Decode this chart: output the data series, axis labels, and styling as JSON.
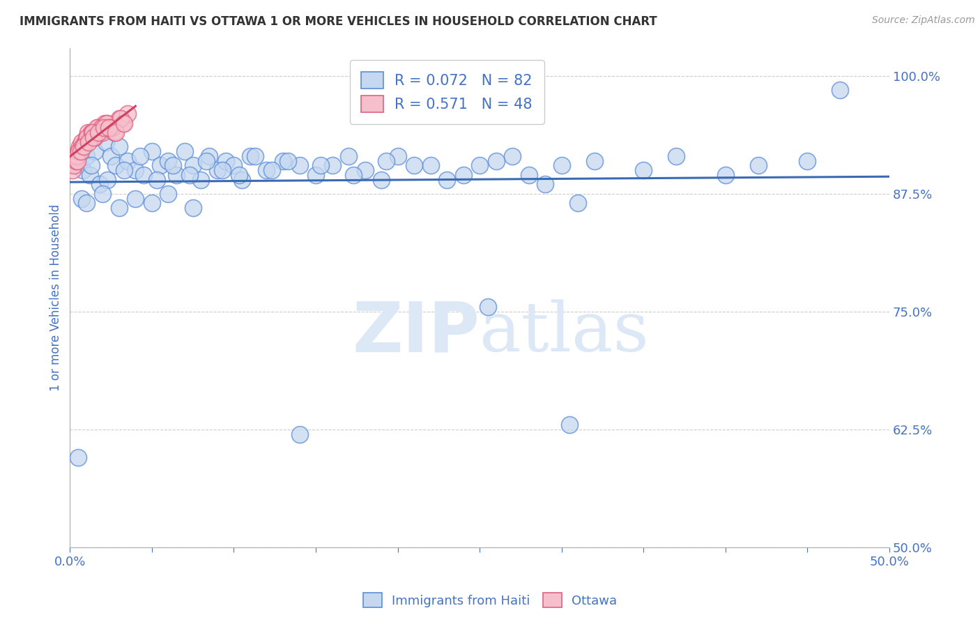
{
  "title": "IMMIGRANTS FROM HAITI VS OTTAWA 1 OR MORE VEHICLES IN HOUSEHOLD CORRELATION CHART",
  "source": "Source: ZipAtlas.com",
  "ylabel_label": "1 or more Vehicles in Household",
  "legend_label1": "Immigrants from Haiti",
  "legend_label2": "Ottawa",
  "r1": 0.072,
  "n1": 82,
  "r2": 0.571,
  "n2": 48,
  "blue_fill": "#c5d8f0",
  "blue_edge": "#5b8dd9",
  "pink_fill": "#f5c0cc",
  "pink_edge": "#e06080",
  "blue_line": "#3b6ab5",
  "pink_line": "#d04060",
  "text_color": "#4472c4",
  "watermark_color": "#dce8f5",
  "title_color": "#333333",
  "grid_color": "#cccccc",
  "xlim": [
    0,
    50
  ],
  "ylim": [
    50,
    103
  ],
  "yticks": [
    50,
    62.5,
    75,
    87.5,
    100
  ],
  "ytick_labels": [
    "50.0%",
    "62.5%",
    "75.0%",
    "87.5%",
    "100.0%"
  ],
  "xtick_labels_show": [
    "0.0%",
    "50.0%"
  ],
  "blue_x": [
    0.4,
    0.6,
    0.8,
    1.0,
    1.2,
    1.5,
    1.8,
    2.2,
    2.5,
    2.8,
    3.0,
    3.5,
    4.0,
    4.5,
    5.0,
    5.5,
    6.0,
    6.5,
    7.0,
    7.5,
    8.0,
    8.5,
    9.0,
    9.5,
    10.0,
    10.5,
    11.0,
    12.0,
    13.0,
    14.0,
    15.0,
    16.0,
    17.0,
    18.0,
    19.0,
    20.0,
    22.0,
    24.0,
    25.0,
    26.0,
    27.0,
    28.0,
    30.0,
    32.0,
    35.0,
    37.0,
    40.0,
    42.0,
    45.0,
    47.0,
    1.3,
    2.3,
    3.3,
    4.3,
    5.3,
    6.3,
    7.3,
    8.3,
    9.3,
    10.3,
    11.3,
    12.3,
    13.3,
    15.3,
    17.3,
    19.3,
    21.0,
    23.0,
    25.5,
    29.0,
    31.0,
    0.5,
    14.0,
    30.5,
    0.7,
    1.0,
    2.0,
    3.0,
    4.0,
    5.0,
    6.0,
    7.5
  ],
  "blue_y": [
    90.5,
    91.0,
    90.0,
    91.5,
    89.5,
    92.0,
    88.5,
    93.0,
    91.5,
    90.5,
    92.5,
    91.0,
    90.0,
    89.5,
    92.0,
    90.5,
    91.0,
    89.5,
    92.0,
    90.5,
    89.0,
    91.5,
    90.0,
    91.0,
    90.5,
    89.0,
    91.5,
    90.0,
    91.0,
    90.5,
    89.5,
    90.5,
    91.5,
    90.0,
    89.0,
    91.5,
    90.5,
    89.5,
    90.5,
    91.0,
    91.5,
    89.5,
    90.5,
    91.0,
    90.0,
    91.5,
    89.5,
    90.5,
    91.0,
    98.5,
    90.5,
    89.0,
    90.0,
    91.5,
    89.0,
    90.5,
    89.5,
    91.0,
    90.0,
    89.5,
    91.5,
    90.0,
    91.0,
    90.5,
    89.5,
    91.0,
    90.5,
    89.0,
    75.5,
    88.5,
    86.5,
    59.5,
    62.0,
    63.0,
    87.0,
    86.5,
    87.5,
    86.0,
    87.0,
    86.5,
    87.5,
    86.0
  ],
  "pink_x": [
    0.15,
    0.25,
    0.35,
    0.5,
    0.6,
    0.7,
    0.8,
    0.9,
    1.0,
    1.1,
    1.2,
    1.3,
    1.5,
    1.6,
    1.7,
    1.8,
    1.9,
    2.0,
    2.1,
    2.2,
    2.3,
    2.5,
    2.7,
    3.0,
    3.2,
    3.5,
    0.4,
    0.55,
    0.75,
    1.05,
    1.35,
    1.65,
    1.95,
    2.25,
    2.6,
    3.1,
    1.4,
    2.4,
    0.45,
    0.65,
    0.85,
    1.15,
    1.45,
    1.75,
    2.05,
    2.35,
    2.8,
    3.3
  ],
  "pink_y": [
    90.0,
    90.5,
    91.0,
    92.0,
    92.5,
    93.0,
    92.5,
    93.0,
    93.5,
    94.0,
    93.5,
    94.0,
    93.5,
    94.0,
    94.5,
    94.0,
    94.5,
    94.0,
    95.0,
    94.5,
    95.0,
    94.5,
    94.0,
    95.5,
    95.0,
    96.0,
    91.5,
    92.0,
    92.5,
    93.5,
    94.0,
    94.5,
    94.5,
    95.0,
    94.5,
    95.5,
    94.0,
    94.5,
    91.0,
    92.0,
    92.5,
    93.0,
    93.5,
    94.0,
    94.5,
    94.5,
    94.0,
    95.0
  ]
}
